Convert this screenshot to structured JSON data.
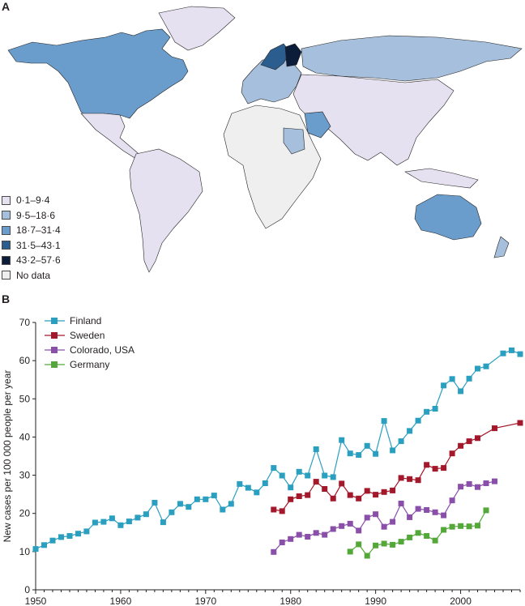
{
  "panel_a_label": "A",
  "panel_b_label": "B",
  "map": {
    "legend": [
      {
        "label": "0·1–9·4",
        "color": "#e6e1f0"
      },
      {
        "label": "9·5–18·6",
        "color": "#a6bfdc"
      },
      {
        "label": "18·7–31·4",
        "color": "#6a9ccc"
      },
      {
        "label": "31·5–43·1",
        "color": "#2c5d8f"
      },
      {
        "label": "43·2–57·6",
        "color": "#0c1d3a"
      },
      {
        "label": "No data",
        "color": "#efefef"
      }
    ]
  },
  "chart_data": {
    "type": "line",
    "ylabel": "New cases per 100 000 people per year",
    "xlabel": "",
    "xlim": [
      1950,
      2007
    ],
    "ylim": [
      0,
      70
    ],
    "x_ticks": [
      1950,
      1960,
      1970,
      1980,
      1990,
      2000
    ],
    "y_ticks": [
      0,
      10,
      20,
      30,
      40,
      50,
      60,
      70
    ],
    "legend_position": "top-left",
    "series": [
      {
        "name": "Finland",
        "color": "#2a9fbf",
        "x": [
          1950,
          1951,
          1952,
          1953,
          1954,
          1955,
          1956,
          1957,
          1958,
          1959,
          1960,
          1961,
          1962,
          1963,
          1964,
          1965,
          1966,
          1967,
          1968,
          1969,
          1970,
          1971,
          1972,
          1973,
          1974,
          1975,
          1976,
          1977,
          1978,
          1979,
          1980,
          1981,
          1982,
          1983,
          1984,
          1985,
          1986,
          1987,
          1988,
          1989,
          1990,
          1991,
          1992,
          1993,
          1994,
          1995,
          1996,
          1997,
          1998,
          1999,
          2000,
          2001,
          2002,
          2003,
          2004,
          2005,
          2006,
          2007
        ],
        "y": [
          10.7,
          11.7,
          12.9,
          13.8,
          14.1,
          14.7,
          15.3,
          17.6,
          17.8,
          18.7,
          16.9,
          17.9,
          18.9,
          19.8,
          22.8,
          17.7,
          20.3,
          22.5,
          21.7,
          23.7,
          23.7,
          24.7,
          21.0,
          22.5,
          27.7,
          26.7,
          25.5,
          27.9,
          31.9,
          29.9,
          26.8,
          30.9,
          29.9,
          36.8,
          29.9,
          29.5,
          39.2,
          35.7,
          35.3,
          37.7,
          35.6,
          44.2,
          36.5,
          38.9,
          41.6,
          44.3,
          46.6,
          47.4,
          53.5,
          55.2,
          52.0,
          55.3,
          57.9,
          58.5,
          null,
          61.9,
          62.7,
          61.7
        ]
      },
      {
        "name": "Sweden",
        "color": "#a3182a",
        "x": [
          1978,
          1979,
          1980,
          1981,
          1982,
          1983,
          1984,
          1985,
          1986,
          1987,
          1988,
          1989,
          1990,
          1991,
          1992,
          1993,
          1994,
          1995,
          1996,
          1997,
          1998,
          1999,
          2000,
          2001,
          2002,
          2004,
          2007
        ],
        "y": [
          21.0,
          20.6,
          23.7,
          24.5,
          24.8,
          28.3,
          26.4,
          23.9,
          27.8,
          24.8,
          23.9,
          25.9,
          24.9,
          25.6,
          26.0,
          29.3,
          29.0,
          28.7,
          32.7,
          31.7,
          31.9,
          35.7,
          37.7,
          38.9,
          39.7,
          42.3,
          43.7
        ]
      },
      {
        "name": "Colorado, USA",
        "color": "#8a4fa8",
        "x": [
          1978,
          1979,
          1980,
          1981,
          1982,
          1983,
          1984,
          1985,
          1986,
          1987,
          1988,
          1989,
          1990,
          1991,
          1992,
          1993,
          1994,
          1995,
          1996,
          1997,
          1998,
          1999,
          2000,
          2001,
          2002,
          2003,
          2004
        ],
        "y": [
          9.9,
          12.4,
          13.3,
          14.4,
          13.9,
          14.9,
          14.4,
          15.9,
          16.7,
          17.3,
          15.5,
          18.9,
          19.8,
          16.5,
          17.8,
          22.6,
          19.0,
          21.2,
          20.9,
          20.3,
          19.5,
          23.4,
          27.0,
          27.7,
          26.9,
          27.9,
          28.4
        ]
      },
      {
        "name": "Germany",
        "color": "#54a83a",
        "x": [
          1987,
          1988,
          1989,
          1990,
          1991,
          1992,
          1993,
          1994,
          1995,
          1996,
          1997,
          1998,
          1999,
          2000,
          2001,
          2002,
          2003
        ],
        "y": [
          10.0,
          11.9,
          8.9,
          11.6,
          12.1,
          11.8,
          12.6,
          13.7,
          14.9,
          14.1,
          12.9,
          15.7,
          16.5,
          16.7,
          16.6,
          16.8,
          20.8
        ]
      }
    ]
  }
}
